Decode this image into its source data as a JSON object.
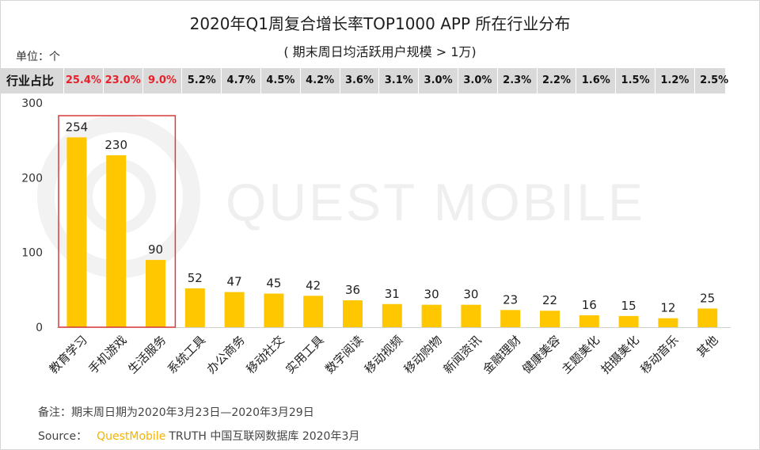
{
  "title": "2020年Q1周复合增长率TOP1000 APP 所在行业分布",
  "subtitle": "( 期末周日均活跃用户规模 > 1万)",
  "unit": "单位：个",
  "share_row_label": "行业占比",
  "watermark": "QUEST MOBILE",
  "footnote": "备注：期末周日期为2020年3月23日—2020年3月29日",
  "source_label": "Source：",
  "source_brand": "QuestMobile",
  "source_text": "TRUTH 中国互联网数据库 2020年3月",
  "colors": {
    "bar": "#ffc700",
    "highlight_box": "#d93a3a",
    "share_highlight": "#e8202a"
  },
  "chart_data": {
    "type": "bar",
    "categories": [
      "教育学习",
      "手机游戏",
      "生活服务",
      "系统工具",
      "办公商务",
      "移动社交",
      "实用工具",
      "数字阅读",
      "移动视频",
      "移动购物",
      "新闻资讯",
      "金融理财",
      "健康美容",
      "主题美化",
      "拍摄美化",
      "移动音乐",
      "其他"
    ],
    "values": [
      254,
      230,
      90,
      52,
      47,
      45,
      42,
      36,
      31,
      30,
      30,
      23,
      22,
      16,
      15,
      12,
      25
    ],
    "shares": [
      "25.4%",
      "23.0%",
      "9.0%",
      "5.2%",
      "4.7%",
      "4.5%",
      "4.2%",
      "3.6%",
      "3.1%",
      "3.0%",
      "3.0%",
      "2.3%",
      "2.2%",
      "1.6%",
      "1.5%",
      "1.2%",
      "2.5%"
    ],
    "highlighted": [
      0,
      1,
      2
    ],
    "ylim": [
      0,
      300
    ],
    "yticks": [
      0,
      100,
      200,
      300
    ],
    "title": "2020年Q1周复合增长率TOP1000 APP 所在行业分布",
    "xlabel": "",
    "ylabel": "单位：个",
    "grid": false
  }
}
